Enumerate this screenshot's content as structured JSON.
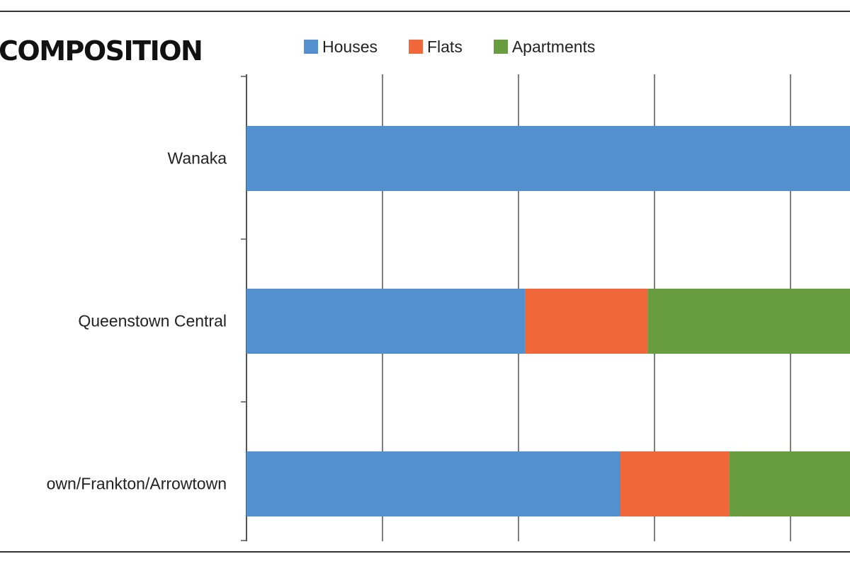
{
  "title": "COMPOSITION",
  "colors": {
    "Houses": "#5390cf",
    "Flats": "#f0683a",
    "Apartments": "#679c3f",
    "grid": "#555555",
    "frame": "#333333"
  },
  "chart_data": {
    "type": "bar",
    "orientation": "horizontal",
    "stacked": true,
    "title": "COMPOSITION",
    "categories": [
      "Wanaka",
      "Queenstown Central",
      "own/Frankton/Arrowtown"
    ],
    "series": [
      {
        "name": "Houses",
        "values": [
          100,
          41,
          55
        ]
      },
      {
        "name": "Flats",
        "values": [
          0,
          18,
          16
        ]
      },
      {
        "name": "Apartments",
        "values": [
          0,
          41,
          29
        ]
      }
    ],
    "xlim": [
      0,
      100
    ],
    "grid": true,
    "legend": "top"
  }
}
